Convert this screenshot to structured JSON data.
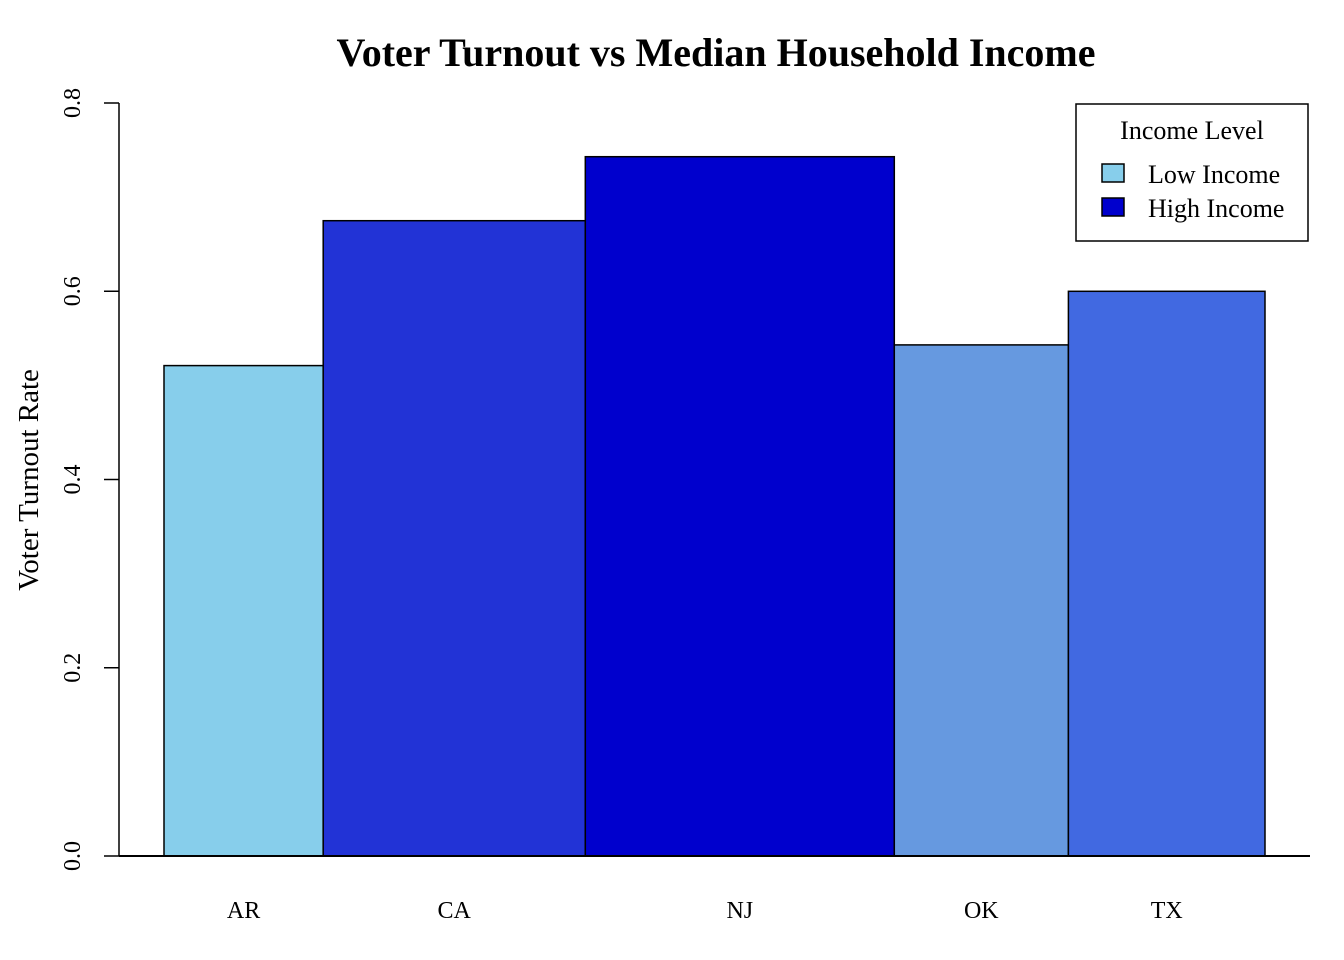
{
  "chart_data": {
    "type": "bar",
    "title": "Voter Turnout vs Median Household Income",
    "xlabel": "",
    "ylabel": "Voter Turnout Rate",
    "ylim": [
      0,
      0.8
    ],
    "yticks": [
      "0.0",
      "0.2",
      "0.4",
      "0.6",
      "0.8"
    ],
    "categories": [
      "AR",
      "CA",
      "NJ",
      "OK",
      "TX"
    ],
    "values": [
      0.521,
      0.675,
      0.743,
      0.543,
      0.6
    ],
    "bar_widths": [
      0.85,
      1.4,
      1.65,
      0.93,
      1.05
    ],
    "bar_colors": [
      "#87CEEB",
      "#2233D6",
      "#0000CD",
      "#6699E0",
      "#4169E1"
    ],
    "grid": false,
    "legend": {
      "title": "Income Level",
      "position": "top-right",
      "items": [
        {
          "label": "Low Income",
          "color": "#87CEEB"
        },
        {
          "label": "High Income",
          "color": "#0000CD"
        }
      ]
    }
  }
}
